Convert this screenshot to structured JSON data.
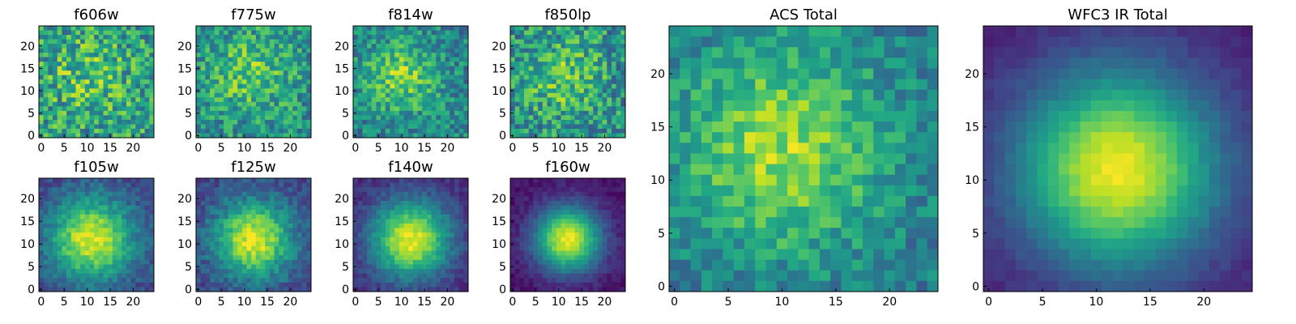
{
  "chart_data": [
    {
      "type": "heatmap",
      "title": "f606w",
      "xticks": [
        0,
        5,
        10,
        15,
        20
      ],
      "yticks": [
        0,
        5,
        10,
        15,
        20
      ],
      "grid_size": 25,
      "peak": [
        10,
        13
      ],
      "sigma": 6.0,
      "noise": 0.55,
      "base": 0.55,
      "contrast": 0.18,
      "seed": 11
    },
    {
      "type": "heatmap",
      "title": "f775w",
      "xticks": [
        0,
        5,
        10,
        15,
        20
      ],
      "yticks": [
        0,
        5,
        10,
        15,
        20
      ],
      "grid_size": 25,
      "peak": [
        11,
        14
      ],
      "sigma": 6.0,
      "noise": 0.45,
      "base": 0.5,
      "contrast": 0.25,
      "seed": 12
    },
    {
      "type": "heatmap",
      "title": "f814w",
      "xticks": [
        0,
        5,
        10,
        15,
        20
      ],
      "yticks": [
        0,
        5,
        10,
        15,
        20
      ],
      "grid_size": 25,
      "peak": [
        10,
        13
      ],
      "sigma": 5.5,
      "noise": 0.4,
      "base": 0.45,
      "contrast": 0.35,
      "seed": 13
    },
    {
      "type": "heatmap",
      "title": "f850lp",
      "xticks": [
        0,
        5,
        10,
        15,
        20
      ],
      "yticks": [
        0,
        5,
        10,
        15,
        20
      ],
      "grid_size": 25,
      "peak": [
        11,
        13
      ],
      "sigma": 6.0,
      "noise": 0.5,
      "base": 0.5,
      "contrast": 0.22,
      "seed": 14
    },
    {
      "type": "heatmap",
      "title": "f105w",
      "xticks": [
        0,
        5,
        10,
        15,
        20
      ],
      "yticks": [
        0,
        5,
        10,
        15,
        20
      ],
      "grid_size": 25,
      "peak": [
        11,
        11
      ],
      "sigma": 6.5,
      "noise": 0.2,
      "base": 0.2,
      "contrast": 0.75,
      "seed": 15
    },
    {
      "type": "heatmap",
      "title": "f125w",
      "xticks": [
        0,
        5,
        10,
        15,
        20
      ],
      "yticks": [
        0,
        5,
        10,
        15,
        20
      ],
      "grid_size": 25,
      "peak": [
        12,
        11
      ],
      "sigma": 6.0,
      "noise": 0.22,
      "base": 0.2,
      "contrast": 0.75,
      "seed": 16
    },
    {
      "type": "heatmap",
      "title": "f140w",
      "xticks": [
        0,
        5,
        10,
        15,
        20
      ],
      "yticks": [
        0,
        5,
        10,
        15,
        20
      ],
      "grid_size": 25,
      "peak": [
        12,
        11
      ],
      "sigma": 6.0,
      "noise": 0.15,
      "base": 0.12,
      "contrast": 0.85,
      "seed": 17
    },
    {
      "type": "heatmap",
      "title": "f160w",
      "xticks": [
        0,
        5,
        10,
        15,
        20
      ],
      "yticks": [
        0,
        5,
        10,
        15,
        20
      ],
      "grid_size": 25,
      "peak": [
        12,
        11
      ],
      "sigma": 5.0,
      "noise": 0.1,
      "base": 0.05,
      "contrast": 0.92,
      "seed": 18
    },
    {
      "type": "heatmap",
      "title": "ACS Total",
      "xticks": [
        0,
        5,
        10,
        15,
        20
      ],
      "yticks": [
        0,
        5,
        10,
        15,
        20
      ],
      "grid_size": 25,
      "peak": [
        10,
        13
      ],
      "sigma": 7.0,
      "noise": 0.3,
      "base": 0.4,
      "contrast": 0.45,
      "seed": 19
    },
    {
      "type": "heatmap",
      "title": "WFC3 IR Total",
      "xticks": [
        0,
        5,
        10,
        15,
        20
      ],
      "yticks": [
        0,
        5,
        10,
        15,
        20
      ],
      "grid_size": 25,
      "peak": [
        12,
        11
      ],
      "sigma": 6.5,
      "noise": 0.06,
      "base": 0.08,
      "contrast": 0.9,
      "seed": 20
    }
  ]
}
